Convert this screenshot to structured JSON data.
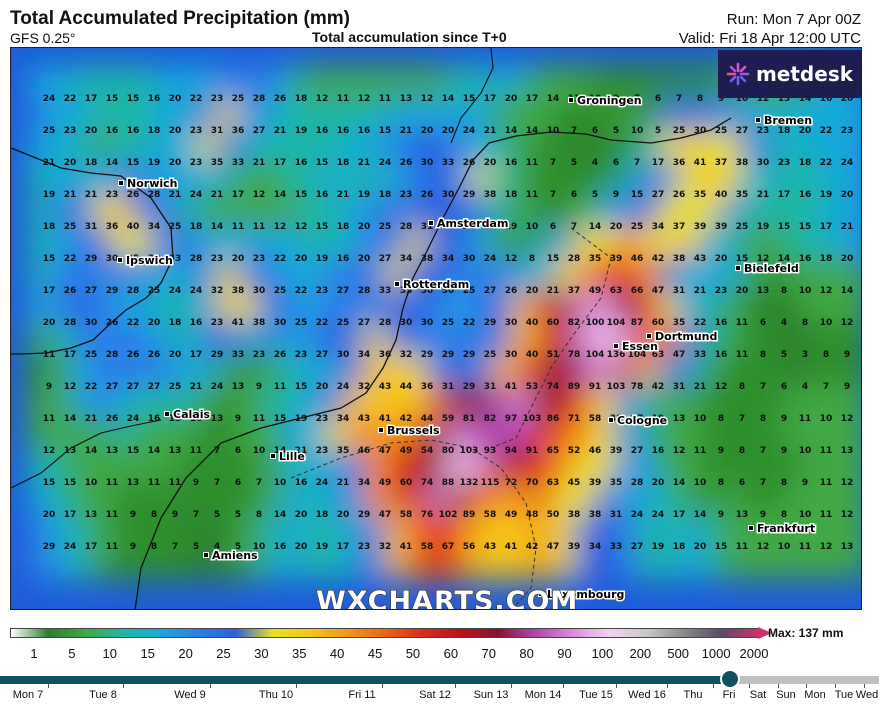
{
  "header": {
    "title": "Total Accumulated Precipitation (mm)",
    "model": "GFS 0.25°",
    "subtitle": "Total accumulation since T+0",
    "run": "Run: Mon 7 Apr 00Z",
    "valid": "Valid: Fri 18 Apr 12:00 UTC"
  },
  "brand": {
    "logo_text": "metdesk",
    "watermark": "WXCHARTS.COM"
  },
  "colors": {
    "low": "#1e7a2c",
    "mid_green": "#41b53a",
    "cyan": "#19b6d8",
    "blue": "#1f4fd6",
    "yellow": "#f2e21c",
    "orange": "#f28a1c",
    "red": "#d81e1e",
    "dark_red": "#8c0f14",
    "magenta": "#c44ec2",
    "pink": "#f0b8f0",
    "timeline": "#0f5160",
    "logo_bg": "#1d1e4f"
  },
  "cities": [
    {
      "name": "Groningen"
    },
    {
      "name": "Bremen"
    },
    {
      "name": "Norwich"
    },
    {
      "name": "Amsterdam"
    },
    {
      "name": "Ipswich"
    },
    {
      "name": "Bielefeld"
    },
    {
      "name": "Rotterdam"
    },
    {
      "name": "Dortmund"
    },
    {
      "name": "Essen"
    },
    {
      "name": "Calais"
    },
    {
      "name": "Brussels"
    },
    {
      "name": "Cologne"
    },
    {
      "name": "Lille"
    },
    {
      "name": "Frankfurt"
    },
    {
      "name": "Amiens"
    },
    {
      "name": "Luxembourg"
    }
  ],
  "values": [
    [
      24,
      22,
      17,
      15,
      15,
      16,
      20,
      22,
      23,
      25,
      28,
      26,
      18,
      12,
      11,
      12,
      11,
      13,
      12,
      14,
      15,
      17,
      20,
      17,
      14,
      11,
      10,
      9,
      7,
      6,
      7,
      8,
      9,
      10,
      12,
      13,
      14,
      16,
      20
    ],
    [
      25,
      23,
      20,
      16,
      16,
      18,
      20,
      23,
      31,
      36,
      27,
      21,
      19,
      16,
      16,
      16,
      15,
      21,
      20,
      20,
      24,
      21,
      14,
      14,
      10,
      7,
      6,
      5,
      10,
      5,
      25,
      30,
      25,
      27,
      23,
      18,
      20,
      22,
      23
    ],
    [
      21,
      20,
      18,
      14,
      15,
      19,
      20,
      23,
      35,
      33,
      21,
      17,
      16,
      15,
      18,
      21,
      24,
      26,
      30,
      33,
      26,
      20,
      16,
      11,
      7,
      5,
      4,
      6,
      7,
      17,
      36,
      41,
      37,
      38,
      30,
      23,
      18,
      22,
      24
    ],
    [
      19,
      21,
      21,
      23,
      26,
      28,
      21,
      24,
      21,
      17,
      12,
      14,
      15,
      16,
      21,
      19,
      18,
      23,
      26,
      30,
      29,
      38,
      18,
      11,
      7,
      6,
      5,
      9,
      15,
      27,
      26,
      35,
      40,
      35,
      21,
      17,
      16,
      19,
      20
    ],
    [
      18,
      25,
      31,
      36,
      40,
      34,
      25,
      18,
      14,
      11,
      11,
      12,
      12,
      15,
      18,
      20,
      25,
      28,
      31,
      34,
      34,
      29,
      19,
      10,
      6,
      7,
      14,
      20,
      25,
      34,
      37,
      39,
      39,
      25,
      19,
      15,
      15,
      17,
      21
    ],
    [
      15,
      22,
      29,
      30,
      35,
      37,
      33,
      28,
      23,
      20,
      23,
      22,
      20,
      19,
      16,
      20,
      27,
      34,
      38,
      34,
      30,
      24,
      12,
      8,
      15,
      28,
      35,
      39,
      46,
      42,
      38,
      43,
      20,
      15,
      12,
      14,
      16,
      18,
      20
    ],
    [
      17,
      26,
      27,
      29,
      28,
      25,
      24,
      24,
      32,
      38,
      30,
      25,
      22,
      23,
      27,
      28,
      33,
      35,
      30,
      30,
      25,
      27,
      26,
      20,
      21,
      37,
      49,
      63,
      66,
      47,
      31,
      21,
      23,
      20,
      13,
      8,
      10,
      12,
      14
    ],
    [
      20,
      28,
      30,
      26,
      22,
      20,
      18,
      16,
      23,
      41,
      38,
      30,
      25,
      22,
      25,
      27,
      28,
      30,
      30,
      25,
      22,
      29,
      30,
      40,
      60,
      82,
      100,
      104,
      87,
      60,
      35,
      22,
      16,
      11,
      6,
      4,
      8,
      10,
      12
    ],
    [
      11,
      17,
      25,
      28,
      26,
      26,
      20,
      17,
      29,
      33,
      23,
      26,
      23,
      27,
      30,
      34,
      36,
      32,
      29,
      29,
      29,
      25,
      30,
      40,
      51,
      78,
      104,
      136,
      104,
      63,
      47,
      33,
      16,
      11,
      8,
      5,
      3,
      8,
      9
    ],
    [
      9,
      12,
      22,
      27,
      27,
      27,
      25,
      21,
      24,
      13,
      9,
      11,
      15,
      20,
      24,
      32,
      43,
      44,
      36,
      31,
      29,
      31,
      41,
      53,
      74,
      89,
      91,
      103,
      78,
      42,
      31,
      21,
      12,
      8,
      7,
      6,
      4,
      7,
      9
    ],
    [
      11,
      14,
      21,
      26,
      24,
      16,
      15,
      16,
      13,
      9,
      11,
      15,
      19,
      23,
      34,
      43,
      41,
      42,
      44,
      59,
      81,
      82,
      97,
      103,
      86,
      71,
      58,
      38,
      27,
      19,
      13,
      10,
      8,
      7,
      8,
      9,
      11,
      10,
      12
    ],
    [
      12,
      13,
      14,
      13,
      15,
      14,
      13,
      11,
      7,
      6,
      10,
      14,
      21,
      23,
      35,
      46,
      47,
      49,
      54,
      80,
      103,
      93,
      94,
      91,
      65,
      52,
      46,
      39,
      27,
      16,
      12,
      11,
      9,
      8,
      7,
      9,
      10,
      11,
      13
    ],
    [
      15,
      15,
      10,
      11,
      13,
      11,
      11,
      9,
      7,
      6,
      7,
      10,
      16,
      24,
      21,
      34,
      49,
      60,
      74,
      88,
      132,
      115,
      72,
      70,
      63,
      45,
      39,
      35,
      28,
      20,
      14,
      10,
      8,
      6,
      7,
      8,
      9,
      11,
      12
    ],
    [
      20,
      17,
      13,
      11,
      9,
      8,
      9,
      7,
      5,
      5,
      8,
      14,
      20,
      18,
      20,
      29,
      47,
      58,
      76,
      102,
      89,
      58,
      49,
      48,
      50,
      38,
      38,
      31,
      24,
      24,
      17,
      14,
      9,
      13,
      9,
      8,
      10,
      11,
      12
    ],
    [
      29,
      24,
      17,
      11,
      9,
      8,
      7,
      5,
      4,
      5,
      10,
      16,
      20,
      19,
      17,
      23,
      32,
      41,
      58,
      67,
      56,
      43,
      41,
      42,
      47,
      39,
      34,
      33,
      27,
      19,
      18,
      20,
      15,
      11,
      12,
      10,
      11,
      12,
      13
    ]
  ],
  "legend": {
    "ticks": [
      "1",
      "5",
      "10",
      "15",
      "20",
      "25",
      "30",
      "35",
      "40",
      "45",
      "50",
      "60",
      "70",
      "80",
      "90",
      "100",
      "200",
      "500",
      "1000",
      "2000"
    ],
    "max": "Max: 137 mm"
  },
  "timeline": {
    "days": [
      "Mon 7",
      "Tue 8",
      "Wed 9",
      "Thu 10",
      "Fri 11",
      "Sat 12",
      "Sun 13",
      "Mon 14",
      "Tue 15",
      "Wed 16",
      "Thu",
      "Fri",
      "Sat",
      "Sun",
      "Mon",
      "Tue",
      "Wed"
    ],
    "selected_fraction": 0.83
  }
}
